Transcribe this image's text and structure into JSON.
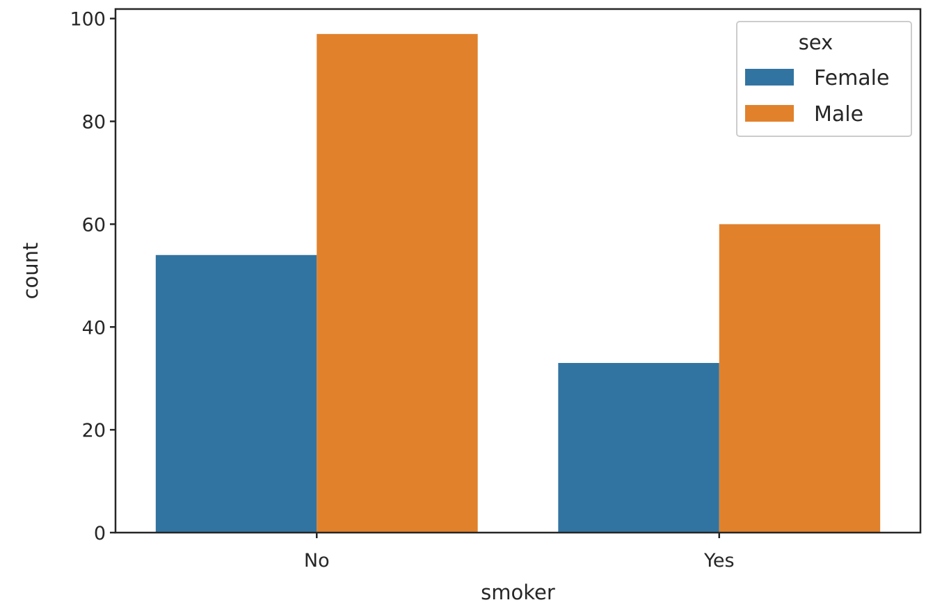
{
  "chart_data": {
    "type": "bar",
    "title": "",
    "xlabel": "smoker",
    "ylabel": "count",
    "categories": [
      "No",
      "Yes"
    ],
    "series": [
      {
        "name": "Female",
        "color": "#3274a1",
        "values": [
          54,
          33
        ]
      },
      {
        "name": "Male",
        "color": "#e1812c",
        "values": [
          97,
          60
        ]
      }
    ],
    "ylim": [
      0,
      101.85
    ],
    "yticks": [
      0,
      20,
      40,
      60,
      80,
      100
    ],
    "grid": false,
    "legend": {
      "title": "sex",
      "placement": "top-right"
    }
  }
}
